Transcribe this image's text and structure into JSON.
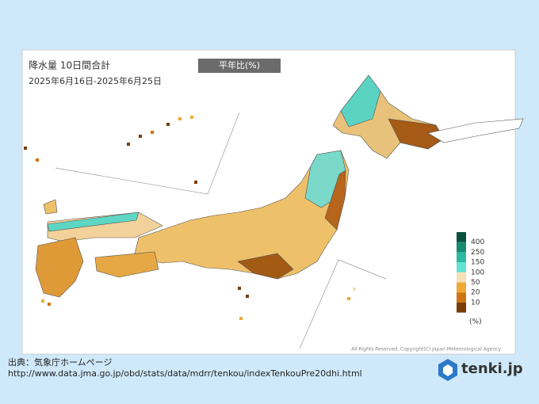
{
  "header": {
    "title": "降水量 10日間合計",
    "period": "2025年6月16日-2025年6月25日",
    "badge": "平年比(%)"
  },
  "legend": {
    "labels": [
      "400",
      "250",
      "150",
      "100",
      "50",
      "20",
      "10"
    ],
    "unit": "(%)",
    "colors": [
      "#0b4f3f",
      "#168b72",
      "#2cbba2",
      "#62e3d3",
      "#f6e0b4",
      "#efa934",
      "#cf7412",
      "#7a3c05"
    ]
  },
  "copyright": "All Rights Reserved, Copyright(C) Japan Meteorological Agency",
  "source": {
    "label": "出典：気象庁ホームページ",
    "url": "http://www.data.jma.go.jp/obd/stats/data/mdrr/tenkou/indexTenkouPre20dhi.html"
  },
  "logo": "tenki.jp"
}
